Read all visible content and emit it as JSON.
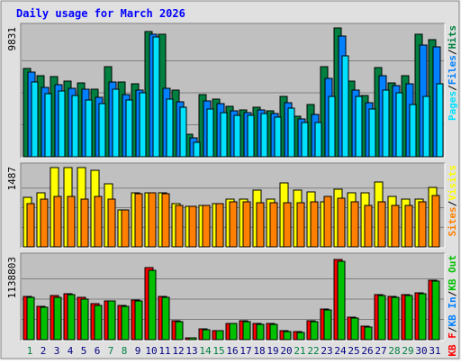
{
  "title": "Daily usage for March 2026",
  "colors": {
    "frame": "#e0e0e0",
    "panel": "#c0c0c0",
    "title": "#0000ff",
    "hits": "#008040",
    "files": "#0080ff",
    "pages": "#00e0ff",
    "visits": "#ffff00",
    "sites": "#ff8000",
    "kb_in": "#ff0000",
    "kb_out": "#00c000",
    "weekend_label": "#008040",
    "weekday_label": "#000080"
  },
  "chart_data": [
    {
      "type": "bar",
      "title": "Daily usage for March 2026",
      "ylabel": "Pages / Files / Hits",
      "ymax_label": "9831",
      "ylim": [
        0,
        9831
      ],
      "categories": [
        "1",
        "2",
        "3",
        "4",
        "5",
        "6",
        "7",
        "8",
        "9",
        "10",
        "11",
        "12",
        "13",
        "14",
        "15",
        "16",
        "17",
        "18",
        "19",
        "20",
        "21",
        "22",
        "23",
        "24",
        "25",
        "26",
        "27",
        "28",
        "29",
        "30",
        "31"
      ],
      "series": [
        {
          "name": "Hits",
          "values": [
            6800,
            6210,
            6150,
            5810,
            5690,
            5170,
            6940,
            5780,
            5640,
            9650,
            9430,
            5150,
            1730,
            4770,
            4430,
            3860,
            3600,
            3790,
            3530,
            4610,
            3110,
            4000,
            6890,
            9900,
            5790,
            4700,
            6840,
            5710,
            6220,
            9420,
            8970
          ]
        },
        {
          "name": "Files",
          "values": [
            6480,
            5340,
            5560,
            5290,
            5170,
            4560,
            5740,
            4750,
            5090,
            9430,
            5270,
            4190,
            1470,
            4290,
            4060,
            3540,
            3400,
            3570,
            3310,
            4180,
            2890,
            3230,
            6020,
            9260,
            5130,
            4170,
            6260,
            5460,
            5610,
            8560,
            8420
          ]
        },
        {
          "name": "Pages",
          "values": [
            5780,
            4840,
            5050,
            4710,
            4340,
            4110,
            5210,
            4330,
            4890,
            9210,
            4420,
            3810,
            1090,
            3660,
            3370,
            3160,
            3190,
            3350,
            3060,
            3750,
            2640,
            2600,
            4640,
            7740,
            4620,
            3700,
            5100,
            4900,
            4020,
            4610,
            5640
          ]
        }
      ],
      "axis_labels": {
        "pages": "Pages",
        "files": "Files",
        "hits": "Hits"
      }
    },
    {
      "type": "bar",
      "ylabel": "Sites / Visits",
      "ymax_label": "1487",
      "ylim": [
        0,
        1487
      ],
      "categories": [
        "1",
        "2",
        "3",
        "4",
        "5",
        "6",
        "7",
        "8",
        "9",
        "10",
        "11",
        "12",
        "13",
        "14",
        "15",
        "16",
        "17",
        "18",
        "19",
        "20",
        "21",
        "22",
        "23",
        "24",
        "25",
        "26",
        "27",
        "28",
        "29",
        "30",
        "31"
      ],
      "series": [
        {
          "name": "Visits",
          "values": [
            946,
            1030,
            1510,
            1510,
            1510,
            1460,
            1200,
            706,
            1030,
            1030,
            1030,
            824,
            765,
            794,
            812,
            912,
            912,
            1080,
            912,
            1220,
            1080,
            1050,
            853,
            1090,
            1020,
            1020,
            1230,
            950,
            912,
            912,
            1130
          ]
        },
        {
          "name": "Sites",
          "values": [
            824,
            912,
            950,
            950,
            912,
            950,
            912,
            706,
            1010,
            1030,
            1010,
            794,
            765,
            794,
            812,
            853,
            853,
            830,
            830,
            830,
            830,
            850,
            953,
            924,
            853,
            794,
            853,
            794,
            794,
            853,
            970
          ]
        }
      ],
      "axis_labels": {
        "sites": "Sites",
        "visits": "Visits"
      }
    },
    {
      "type": "bar",
      "ylabel": "KB F / KB In / KB Out",
      "ymax_label": "1138803",
      "ylim": [
        0,
        1138803
      ],
      "categories": [
        "1",
        "2",
        "3",
        "4",
        "5",
        "6",
        "7",
        "8",
        "9",
        "10",
        "11",
        "12",
        "13",
        "14",
        "15",
        "16",
        "17",
        "18",
        "19",
        "20",
        "21",
        "22",
        "23",
        "24",
        "25",
        "26",
        "27",
        "28",
        "29",
        "30",
        "31"
      ],
      "series": [
        {
          "name": "KB F",
          "values": [
            610000,
            470000,
            620000,
            640000,
            590000,
            500000,
            550000,
            480000,
            560000,
            1010000,
            610000,
            260000,
            30000,
            150000,
            130000,
            230000,
            270000,
            230000,
            230000,
            130000,
            110000,
            260000,
            430000,
            1120000,
            320000,
            190000,
            630000,
            610000,
            630000,
            660000,
            840000
          ]
        },
        {
          "name": "KB In",
          "values": [
            0,
            0,
            0,
            0,
            0,
            0,
            0,
            0,
            0,
            0,
            0,
            0,
            0,
            0,
            0,
            0,
            0,
            0,
            0,
            0,
            0,
            0,
            0,
            0,
            0,
            0,
            0,
            0,
            0,
            0,
            0
          ]
        },
        {
          "name": "KB Out",
          "values": [
            590000,
            450000,
            600000,
            630000,
            570000,
            480000,
            540000,
            470000,
            540000,
            980000,
            590000,
            250000,
            30000,
            140000,
            130000,
            230000,
            250000,
            220000,
            210000,
            120000,
            100000,
            250000,
            420000,
            1100000,
            310000,
            180000,
            620000,
            600000,
            620000,
            650000,
            820000
          ]
        }
      ],
      "axis_labels": {
        "kbf": "KB F",
        "kbin": "KB In",
        "kbout": "KB Out"
      }
    }
  ],
  "x_axis": {
    "labels": [
      "1",
      "2",
      "3",
      "4",
      "5",
      "6",
      "7",
      "8",
      "9",
      "10",
      "11",
      "12",
      "13",
      "14",
      "15",
      "16",
      "17",
      "18",
      "19",
      "20",
      "21",
      "22",
      "23",
      "24",
      "25",
      "26",
      "27",
      "28",
      "29",
      "30",
      "31"
    ],
    "weekend": [
      true,
      false,
      false,
      false,
      false,
      false,
      true,
      true,
      false,
      false,
      false,
      false,
      false,
      true,
      true,
      false,
      false,
      false,
      false,
      false,
      true,
      true,
      false,
      false,
      false,
      false,
      false,
      true,
      true,
      false,
      false
    ]
  }
}
